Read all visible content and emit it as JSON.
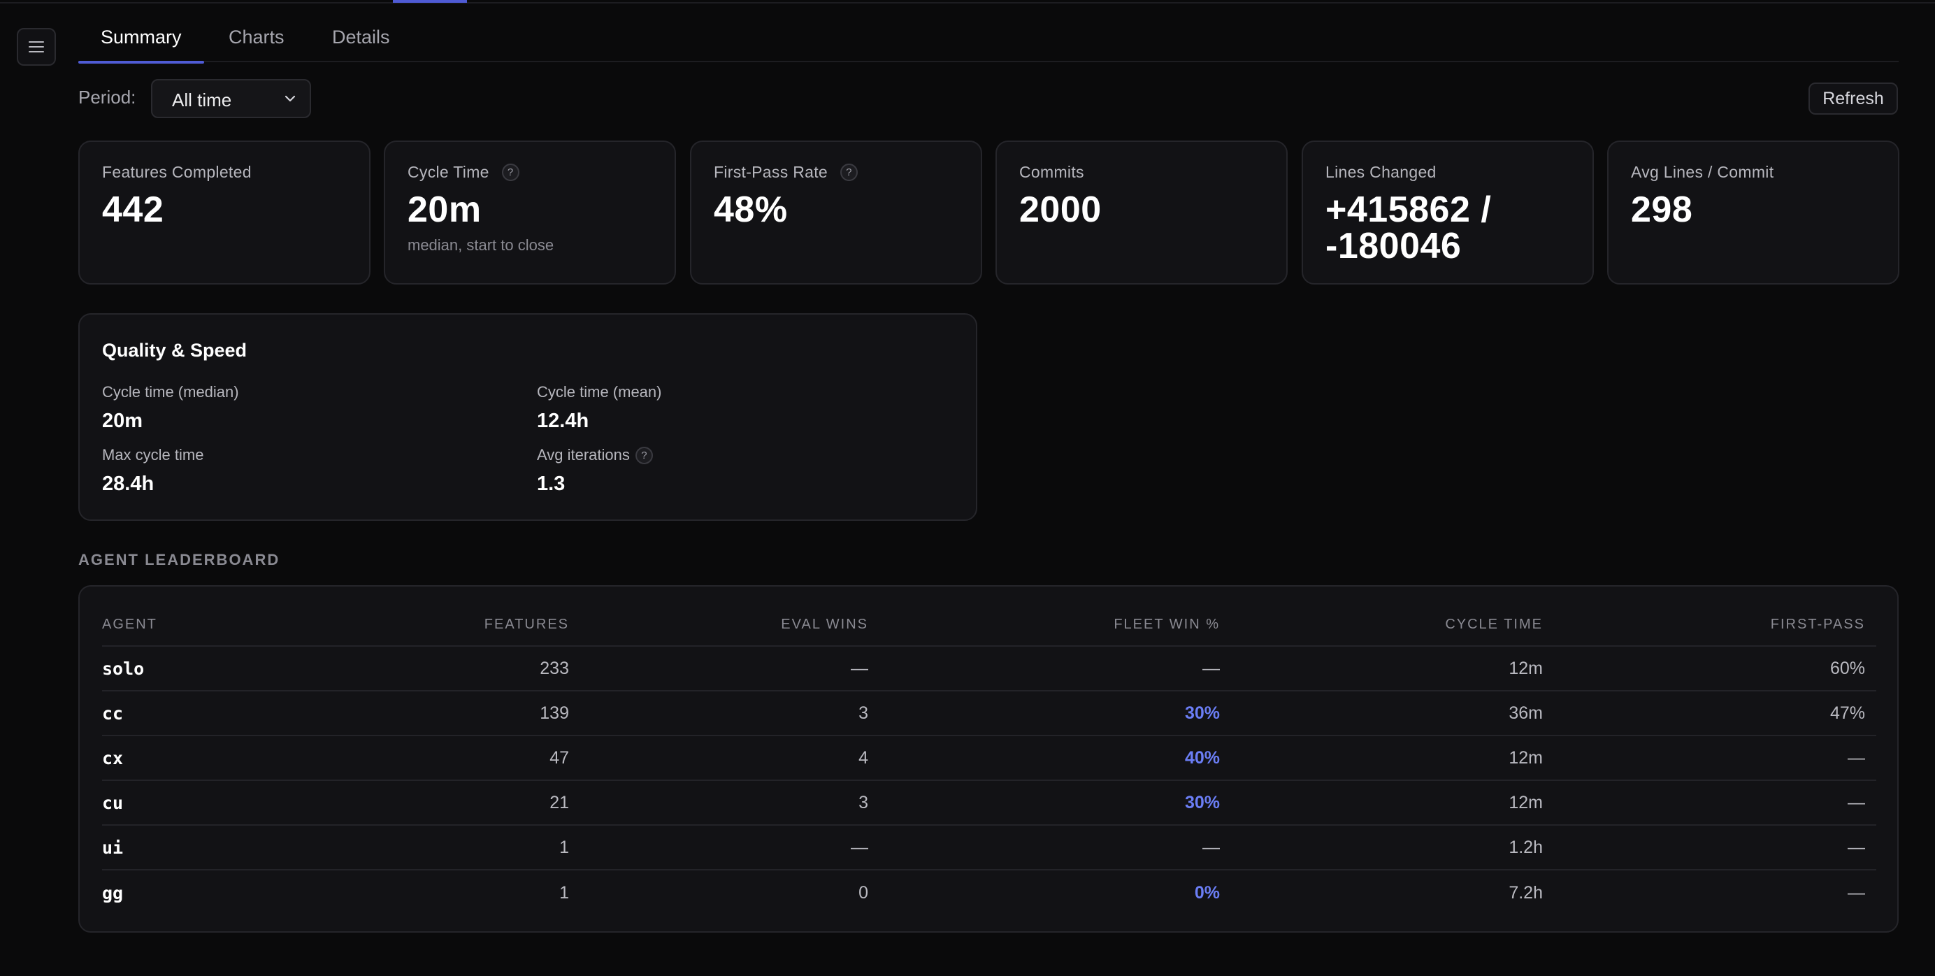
{
  "tabs": [
    {
      "label": "Summary",
      "active": true
    },
    {
      "label": "Charts",
      "active": false
    },
    {
      "label": "Details",
      "active": false
    }
  ],
  "period": {
    "label": "Period:",
    "selected": "All time"
  },
  "refresh_label": "Refresh",
  "cards": [
    {
      "label": "Features Completed",
      "value": "442",
      "sub": "",
      "help": false
    },
    {
      "label": "Cycle Time",
      "value": "20m",
      "sub": "median, start to close",
      "help": true
    },
    {
      "label": "First-Pass Rate",
      "value": "48%",
      "sub": "",
      "help": true
    },
    {
      "label": "Commits",
      "value": "2000",
      "sub": "",
      "help": false
    },
    {
      "label": "Lines Changed",
      "value": "+415862 / -180046",
      "sub": "",
      "help": false
    },
    {
      "label": "Avg Lines / Commit",
      "value": "298",
      "sub": "",
      "help": false
    }
  ],
  "quality": {
    "title": "Quality & Speed",
    "items": [
      {
        "label": "Cycle time (median)",
        "value": "20m",
        "help": false
      },
      {
        "label": "Cycle time (mean)",
        "value": "12.4h",
        "help": false
      },
      {
        "label": "Max cycle time",
        "value": "28.4h",
        "help": false
      },
      {
        "label": "Avg iterations",
        "value": "1.3",
        "help": true
      }
    ]
  },
  "help_glyph": "?",
  "leaderboard": {
    "heading": "AGENT LEADERBOARD",
    "columns": [
      "AGENT",
      "FEATURES",
      "EVAL WINS",
      "FLEET WIN %",
      "CYCLE TIME",
      "FIRST-PASS"
    ],
    "rows": [
      {
        "agent": "solo",
        "features": "233",
        "eval_wins": "—",
        "fleet_win": "—",
        "cycle_time": "12m",
        "first_pass": "60%"
      },
      {
        "agent": "cc",
        "features": "139",
        "eval_wins": "3",
        "fleet_win": "30%",
        "cycle_time": "36m",
        "first_pass": "47%"
      },
      {
        "agent": "cx",
        "features": "47",
        "eval_wins": "4",
        "fleet_win": "40%",
        "cycle_time": "12m",
        "first_pass": "—"
      },
      {
        "agent": "cu",
        "features": "21",
        "eval_wins": "3",
        "fleet_win": "30%",
        "cycle_time": "12m",
        "first_pass": "—"
      },
      {
        "agent": "ui",
        "features": "1",
        "eval_wins": "—",
        "fleet_win": "—",
        "cycle_time": "1.2h",
        "first_pass": "—"
      },
      {
        "agent": "gg",
        "features": "1",
        "eval_wins": "0",
        "fleet_win": "0%",
        "cycle_time": "7.2h",
        "first_pass": "—"
      }
    ]
  },
  "colors": {
    "accent": "#4f5bd5",
    "fleet": "#6b7ef5",
    "background": "#0a0a0b",
    "card": "#121215"
  }
}
